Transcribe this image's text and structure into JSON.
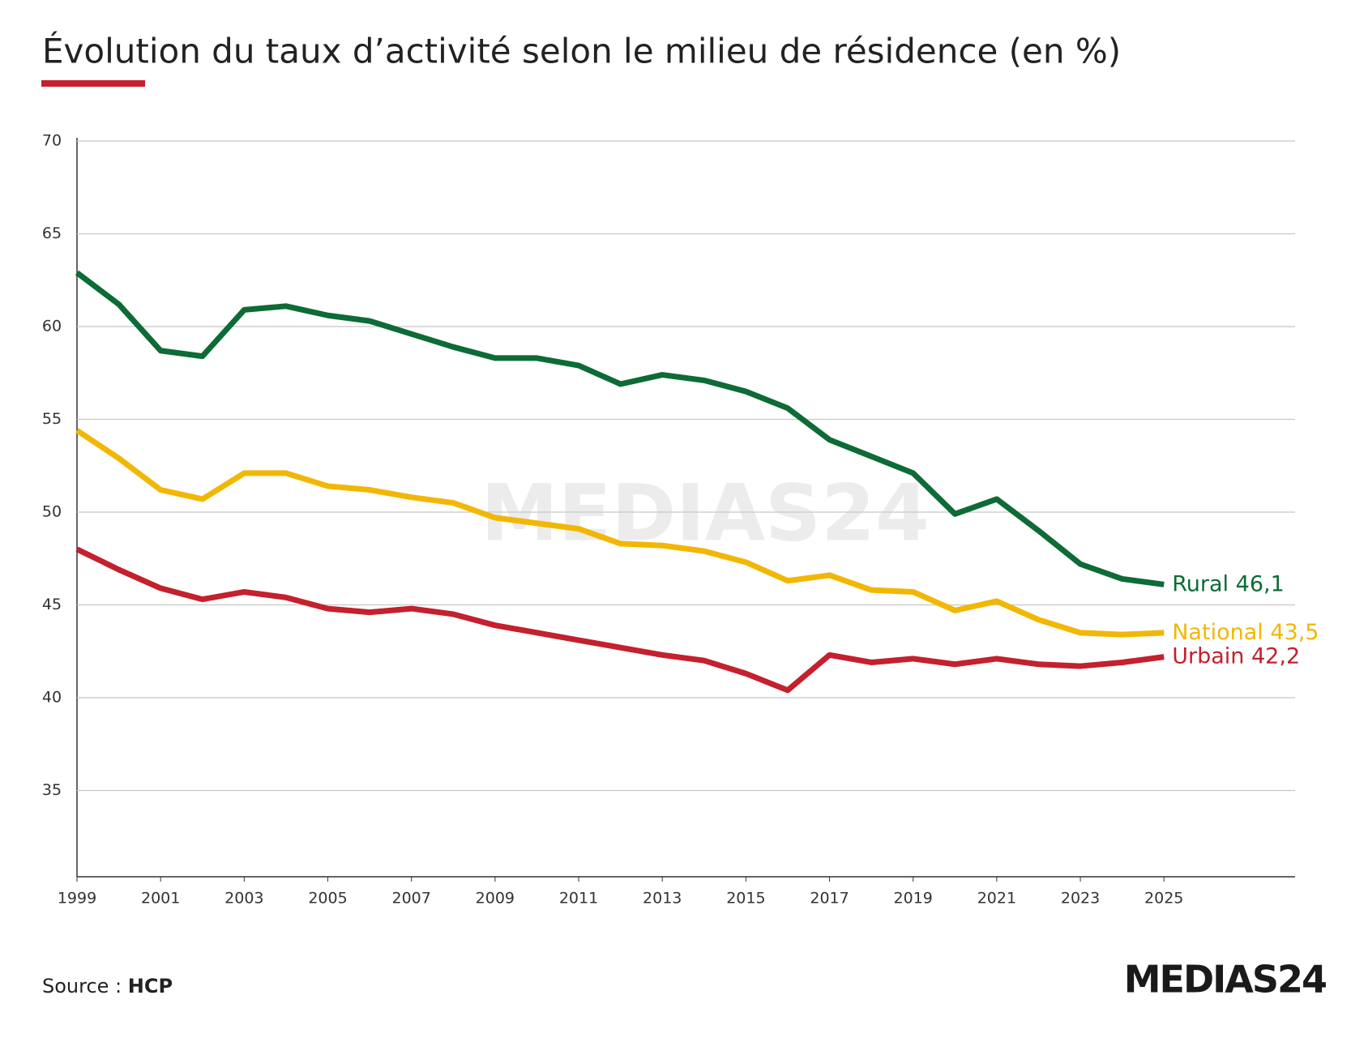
{
  "chart_data": {
    "type": "line",
    "title": "Évolution du taux d’activité selon le milieu de résidence (en %)",
    "x": [
      1999,
      2000,
      2001,
      2002,
      2003,
      2004,
      2005,
      2006,
      2007,
      2008,
      2009,
      2010,
      2011,
      2012,
      2013,
      2014,
      2015,
      2016,
      2017,
      2018,
      2019,
      2020,
      2021,
      2022,
      2023,
      2024,
      2025
    ],
    "series": [
      {
        "name": "Rural",
        "color": "#0d6b35",
        "values": [
          62.9,
          61.2,
          58.7,
          58.4,
          60.9,
          61.1,
          60.6,
          60.3,
          59.6,
          58.9,
          58.3,
          58.3,
          57.9,
          56.9,
          57.4,
          57.1,
          56.5,
          55.6,
          53.9,
          53.0,
          52.1,
          49.9,
          50.7,
          49.0,
          47.2,
          46.4,
          46.1
        ],
        "value_labels": [
          null,
          null,
          null,
          null,
          null,
          null,
          null,
          null,
          null,
          null,
          null,
          null,
          null,
          null,
          null,
          null,
          null,
          null,
          null,
          null,
          null,
          null,
          null,
          null,
          null,
          null,
          "46,1"
        ]
      },
      {
        "name": "National",
        "color": "#f2b705",
        "values": [
          54.4,
          52.9,
          51.2,
          50.7,
          52.1,
          52.1,
          51.4,
          51.2,
          50.8,
          50.5,
          49.7,
          49.4,
          49.1,
          48.3,
          48.2,
          47.9,
          47.3,
          46.3,
          46.6,
          45.8,
          45.7,
          44.7,
          45.2,
          44.2,
          43.5,
          43.4,
          43.5
        ],
        "value_labels": [
          null,
          null,
          null,
          null,
          null,
          null,
          null,
          null,
          null,
          null,
          null,
          null,
          null,
          null,
          null,
          null,
          null,
          null,
          null,
          null,
          null,
          null,
          null,
          null,
          null,
          null,
          "43,5"
        ]
      },
      {
        "name": "Urbain",
        "color": "#c4202e",
        "values": [
          48.0,
          46.9,
          45.9,
          45.3,
          45.7,
          45.4,
          44.8,
          44.6,
          44.8,
          44.5,
          43.9,
          43.5,
          43.1,
          42.7,
          42.3,
          42.0,
          41.3,
          40.4,
          42.3,
          41.9,
          42.1,
          41.8,
          42.1,
          41.8,
          41.7,
          41.9,
          42.2
        ],
        "value_labels": [
          null,
          null,
          null,
          null,
          null,
          null,
          null,
          null,
          null,
          null,
          null,
          null,
          null,
          null,
          null,
          null,
          null,
          null,
          null,
          null,
          null,
          null,
          null,
          null,
          null,
          null,
          "42,2"
        ]
      }
    ],
    "xlim": [
      1999,
      2028
    ],
    "xticks": [
      1999,
      2001,
      2003,
      2005,
      2007,
      2009,
      2011,
      2013,
      2015,
      2017,
      2019,
      2021,
      2023,
      2025
    ],
    "ylim": [
      30,
      70
    ],
    "yticks": [
      35,
      40,
      45,
      50,
      55,
      60,
      65,
      70
    ],
    "grid": true,
    "source": {
      "label": "Source :",
      "value": "HCP"
    },
    "watermark": "MEDIAS24",
    "logo": "MEDIAS24"
  }
}
